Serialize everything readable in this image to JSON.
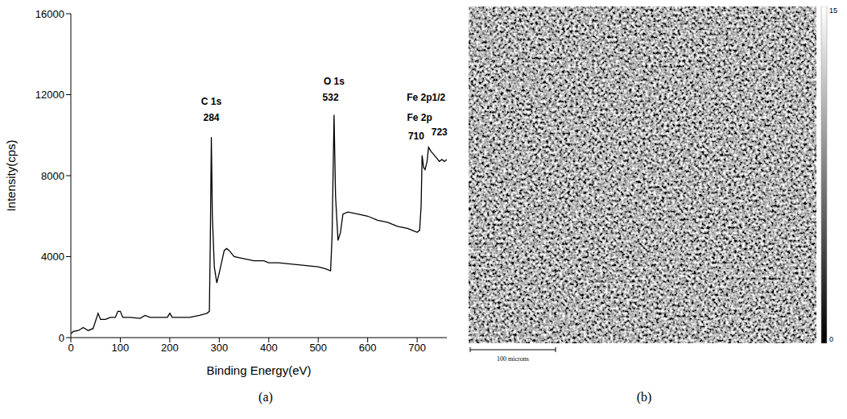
{
  "chart_data": [
    {
      "type": "line",
      "title": "(a)",
      "x_label": "Binding Energy(eV)",
      "y_label": "Intensity(cps)",
      "x": [
        0,
        5,
        15,
        25,
        35,
        45,
        55,
        60,
        70,
        80,
        90,
        95,
        100,
        105,
        120,
        140,
        150,
        160,
        180,
        195,
        200,
        205,
        220,
        240,
        260,
        275,
        280,
        282,
        284,
        286,
        290,
        295,
        300,
        310,
        315,
        320,
        330,
        350,
        370,
        390,
        400,
        420,
        440,
        460,
        480,
        500,
        515,
        525,
        528,
        532,
        535,
        540,
        545,
        550,
        560,
        580,
        600,
        620,
        640,
        660,
        680,
        700,
        705,
        708,
        710,
        713,
        716,
        720,
        723,
        728,
        735,
        745,
        750,
        755,
        760
      ],
      "values": [
        200,
        300,
        350,
        500,
        350,
        450,
        1200,
        900,
        900,
        1000,
        1000,
        1300,
        1300,
        1000,
        1000,
        950,
        1100,
        1000,
        1000,
        1000,
        1200,
        1000,
        1000,
        1000,
        1100,
        1200,
        1300,
        5000,
        9900,
        6000,
        3500,
        2700,
        3200,
        4300,
        4400,
        4300,
        4000,
        3900,
        3800,
        3800,
        3700,
        3700,
        3650,
        3600,
        3550,
        3500,
        3400,
        3300,
        5000,
        11000,
        7000,
        4800,
        5200,
        6100,
        6200,
        6100,
        6000,
        5800,
        5700,
        5500,
        5400,
        5200,
        5300,
        6500,
        9000,
        8400,
        8300,
        8700,
        9400,
        9200,
        9000,
        8700,
        8800,
        8700,
        8800
      ],
      "color": "#000000",
      "xlim": [
        0,
        760
      ],
      "xticks": [
        0,
        100,
        200,
        300,
        400,
        500,
        600,
        700
      ],
      "ylim": [
        0,
        16000
      ],
      "yticks": [
        0,
        4000,
        8000,
        12000,
        16000
      ],
      "grid": false,
      "annotations": [
        {
          "text": "C 1s",
          "x": 284,
          "y": 11300
        },
        {
          "text": "284",
          "x": 284,
          "y": 10500
        },
        {
          "text": "O 1s",
          "x": 532,
          "y": 12300
        },
        {
          "text": "532",
          "x": 525,
          "y": 11500
        },
        {
          "text": "Fe 2p1/2",
          "x": 718,
          "y": 11500
        },
        {
          "text": "Fe 2p",
          "x": 705,
          "y": 10500
        },
        {
          "text": "710",
          "x": 698,
          "y": 9600
        },
        {
          "text": "723",
          "x": 745,
          "y": 9800
        }
      ]
    },
    {
      "type": "heatmap",
      "title": "(b)",
      "colorbar_range": [
        0,
        15
      ],
      "colorbar_ticks": [
        0,
        15
      ],
      "annotations": [
        "100 microns"
      ]
    }
  ]
}
